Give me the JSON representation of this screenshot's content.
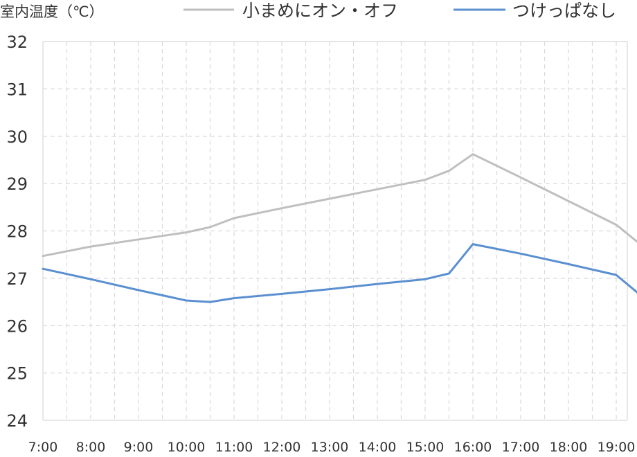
{
  "chart_data": {
    "type": "line",
    "ylabel": "室内温度（℃）",
    "xlabel": "",
    "title": "",
    "x": [
      "7:00",
      "8:00",
      "9:00",
      "10:00",
      "11:00",
      "12:00",
      "13:00",
      "14:00",
      "15:00",
      "16:00",
      "17:00",
      "18:00",
      "19:00"
    ],
    "y_ticks": [
      24,
      25,
      26,
      27,
      28,
      29,
      30,
      31,
      32
    ],
    "ylim": [
      24,
      32
    ],
    "xlim_hours": [
      7,
      19.25
    ],
    "grid": true,
    "legend_position": "top",
    "series": [
      {
        "name": "小まめにオン・オフ",
        "color": "#bfbfbf",
        "points": [
          [
            7.0,
            27.47
          ],
          [
            8.0,
            27.67
          ],
          [
            9.0,
            27.82
          ],
          [
            10.0,
            27.97
          ],
          [
            10.5,
            28.08
          ],
          [
            11.0,
            28.27
          ],
          [
            12.0,
            28.48
          ],
          [
            13.0,
            28.68
          ],
          [
            14.0,
            28.88
          ],
          [
            15.0,
            29.08
          ],
          [
            15.5,
            29.27
          ],
          [
            16.0,
            29.62
          ],
          [
            17.0,
            29.13
          ],
          [
            18.0,
            28.63
          ],
          [
            19.0,
            28.13
          ],
          [
            19.5,
            27.72
          ]
        ]
      },
      {
        "name": "つけっぱなし",
        "color": "#5a8fd0",
        "points": [
          [
            7.0,
            27.2
          ],
          [
            8.0,
            26.98
          ],
          [
            9.0,
            26.75
          ],
          [
            10.0,
            26.53
          ],
          [
            10.5,
            26.5
          ],
          [
            11.0,
            26.58
          ],
          [
            12.0,
            26.67
          ],
          [
            13.0,
            26.77
          ],
          [
            14.0,
            26.88
          ],
          [
            15.0,
            26.98
          ],
          [
            15.5,
            27.1
          ],
          [
            16.0,
            27.72
          ],
          [
            17.0,
            27.52
          ],
          [
            18.0,
            27.3
          ],
          [
            19.0,
            27.07
          ],
          [
            19.5,
            26.65
          ]
        ]
      }
    ]
  }
}
